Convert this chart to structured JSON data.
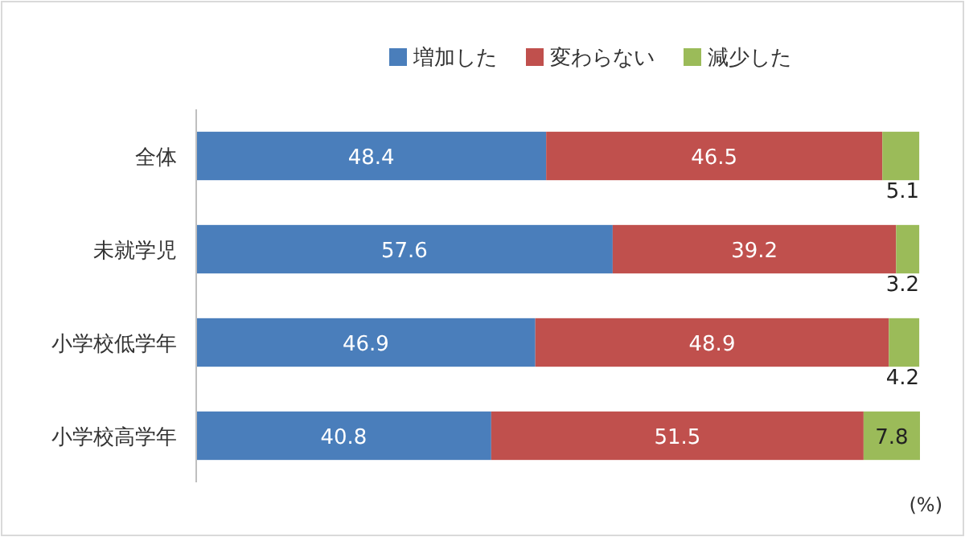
{
  "chart_data": {
    "type": "bar",
    "orientation": "horizontal",
    "stacked": true,
    "data_labels": true,
    "legend": "top",
    "tick_labels": "y",
    "xlabel": "(%)",
    "categories": [
      "全体",
      "未就学児",
      "小学校低学年",
      "小学校高学年"
    ],
    "series": [
      {
        "name": "増加した",
        "color": "#4a7ebb",
        "values": [
          48.4,
          57.6,
          46.9,
          40.8
        ]
      },
      {
        "name": "変わらない",
        "color": "#c0504d",
        "values": [
          46.5,
          39.2,
          48.9,
          51.5
        ]
      },
      {
        "name": "減少した",
        "color": "#9bbb59",
        "values": [
          5.1,
          3.2,
          4.2,
          7.8
        ]
      }
    ]
  }
}
